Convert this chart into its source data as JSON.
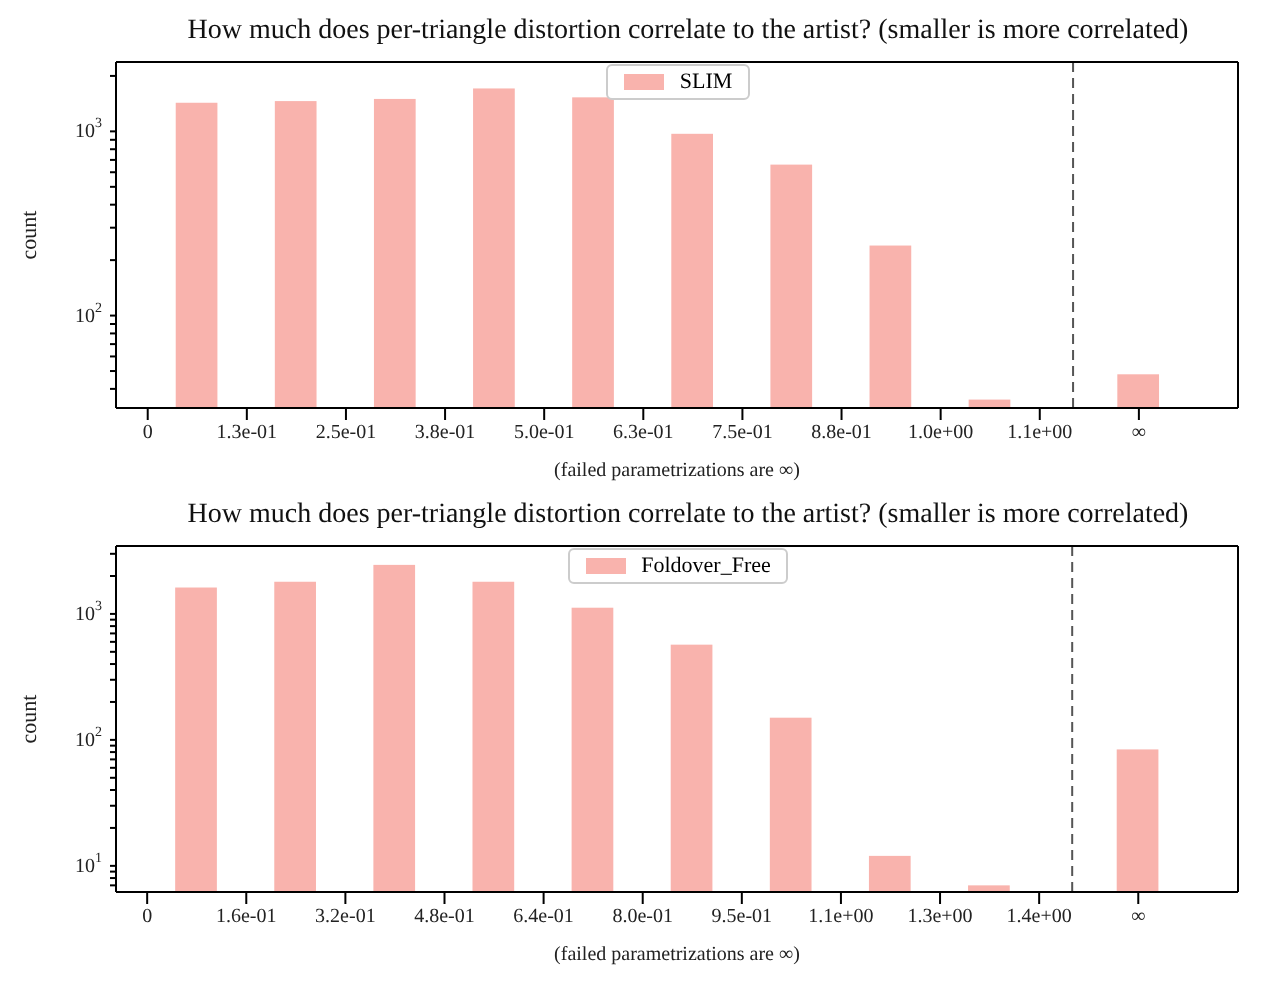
{
  "chart_data": [
    {
      "type": "bar",
      "title": "How much does per-triangle distortion correlate to the artist? (smaller is more correlated)",
      "xlabel": "(failed parametrizations are ∞)",
      "ylabel": "count",
      "log": "y",
      "legend": "top",
      "x": [
        0.0625,
        0.1875,
        0.3125,
        0.4375,
        0.5625,
        0.6875,
        0.8125,
        0.9375,
        1.0625,
        1.25
      ],
      "series": [
        {
          "name": "SLIM",
          "color": "#f9b3ad",
          "values": [
            1430,
            1460,
            1500,
            1710,
            1530,
            970,
            660,
            240,
            35,
            48
          ]
        }
      ],
      "xlim": [
        -0.04,
        1.375
      ],
      "xticks": [
        {
          "value": 0,
          "label": "0"
        },
        {
          "value": 0.125,
          "label": "1.3e-01"
        },
        {
          "value": 0.25,
          "label": "2.5e-01"
        },
        {
          "value": 0.375,
          "label": "3.8e-01"
        },
        {
          "value": 0.5,
          "label": "5.0e-01"
        },
        {
          "value": 0.625,
          "label": "6.3e-01"
        },
        {
          "value": 0.75,
          "label": "7.5e-01"
        },
        {
          "value": 0.875,
          "label": "8.8e-01"
        },
        {
          "value": 1.0,
          "label": "1.0e+00"
        },
        {
          "value": 1.125,
          "label": "1.1e+00"
        },
        {
          "value": 1.25,
          "label": "∞"
        }
      ],
      "ylim": [
        31.5,
        2380
      ],
      "yticks": [
        {
          "value": 40,
          "label": null
        },
        {
          "value": 50,
          "label": null
        },
        {
          "value": 60,
          "label": null
        },
        {
          "value": 70,
          "label": null
        },
        {
          "value": 80,
          "label": null
        },
        {
          "value": 90,
          "label": null
        },
        {
          "value": 100,
          "label": "10$^{2}$"
        },
        {
          "value": 200,
          "label": null
        },
        {
          "value": 300,
          "label": null
        },
        {
          "value": 400,
          "label": null
        },
        {
          "value": 500,
          "label": null
        },
        {
          "value": 600,
          "label": null
        },
        {
          "value": 700,
          "label": null
        },
        {
          "value": 800,
          "label": null
        },
        {
          "value": 900,
          "label": null
        },
        {
          "value": 1000,
          "label": "10$^{3}$"
        },
        {
          "value": 2000,
          "label": null
        }
      ],
      "ref_lines": [
        {
          "axis": "x",
          "value": 1.167,
          "color": "#555555",
          "line_style": "dashed"
        }
      ]
    },
    {
      "type": "bar",
      "title": "How much does per-triangle distortion correlate to the artist? (smaller is more correlated)",
      "xlabel": "(failed parametrizations are ∞)",
      "ylabel": "count",
      "log": "y",
      "legend": "top",
      "x": [
        0.0795,
        0.2385,
        0.3975,
        0.5565,
        0.7155,
        0.8745,
        1.0335,
        1.1925,
        1.3515,
        1.59
      ],
      "series": [
        {
          "name": "Foldover_Free",
          "color": "#f9b3ad",
          "values": [
            1620,
            1800,
            2450,
            1800,
            1120,
            570,
            150,
            12,
            7,
            84
          ]
        }
      ],
      "xlim": [
        -0.05,
        1.75
      ],
      "xticks": [
        {
          "value": 0,
          "label": "0"
        },
        {
          "value": 0.159,
          "label": "1.6e-01"
        },
        {
          "value": 0.318,
          "label": "3.2e-01"
        },
        {
          "value": 0.477,
          "label": "4.8e-01"
        },
        {
          "value": 0.636,
          "label": "6.4e-01"
        },
        {
          "value": 0.795,
          "label": "8.0e-01"
        },
        {
          "value": 0.954,
          "label": "9.5e-01"
        },
        {
          "value": 1.113,
          "label": "1.1e+00"
        },
        {
          "value": 1.272,
          "label": "1.3e+00"
        },
        {
          "value": 1.431,
          "label": "1.4e+00"
        },
        {
          "value": 1.59,
          "label": "∞"
        }
      ],
      "ylim": [
        6.2,
        3460
      ],
      "yticks": [
        {
          "value": 7,
          "label": null
        },
        {
          "value": 8,
          "label": null
        },
        {
          "value": 9,
          "label": null
        },
        {
          "value": 10,
          "label": "10$^{1}$"
        },
        {
          "value": 20,
          "label": null
        },
        {
          "value": 30,
          "label": null
        },
        {
          "value": 40,
          "label": null
        },
        {
          "value": 50,
          "label": null
        },
        {
          "value": 60,
          "label": null
        },
        {
          "value": 70,
          "label": null
        },
        {
          "value": 80,
          "label": null
        },
        {
          "value": 90,
          "label": null
        },
        {
          "value": 100,
          "label": "10$^{2}$"
        },
        {
          "value": 200,
          "label": null
        },
        {
          "value": 300,
          "label": null
        },
        {
          "value": 400,
          "label": null
        },
        {
          "value": 500,
          "label": null
        },
        {
          "value": 600,
          "label": null
        },
        {
          "value": 700,
          "label": null
        },
        {
          "value": 800,
          "label": null
        },
        {
          "value": 900,
          "label": null
        },
        {
          "value": 1000,
          "label": "10$^{3}$"
        },
        {
          "value": 2000,
          "label": null
        },
        {
          "value": 3000,
          "label": null
        }
      ],
      "ref_lines": [
        {
          "axis": "x",
          "value": 1.484,
          "color": "#555555",
          "line_style": "dashed"
        }
      ]
    }
  ]
}
